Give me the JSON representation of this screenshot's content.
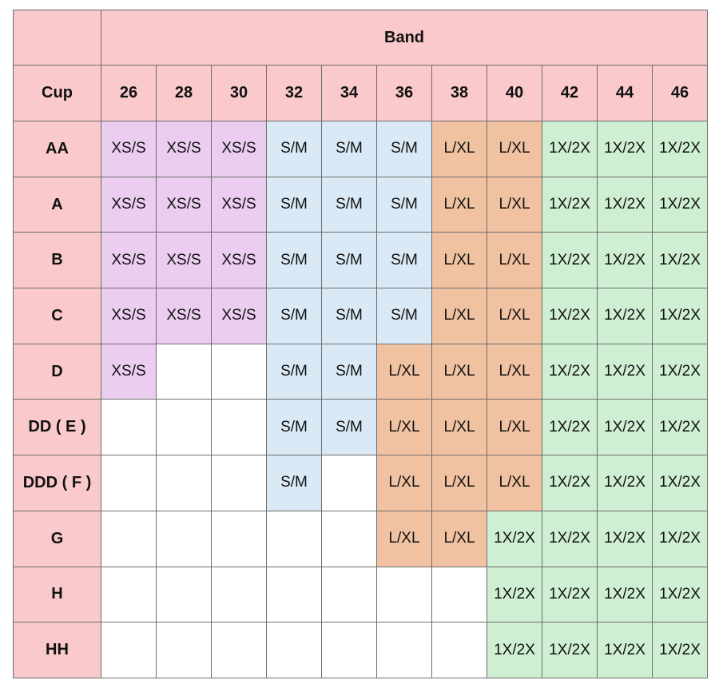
{
  "band_label": "Band",
  "cup_label": "Cup",
  "bands": [
    "26",
    "28",
    "30",
    "32",
    "34",
    "36",
    "38",
    "40",
    "42",
    "44",
    "46"
  ],
  "colors": {
    "header": "#f9c9cb",
    "XS/S": "#ebcdf0",
    "S/M": "#d9e9f5",
    "L/XL": "#f1c2a2",
    "1X/2X": "#cfefd2",
    "empty": "#ffffff"
  },
  "rows": [
    {
      "cup": "AA",
      "cells": [
        "XS/S",
        "XS/S",
        "XS/S",
        "S/M",
        "S/M",
        "S/M",
        "L/XL",
        "L/XL",
        "1X/2X",
        "1X/2X",
        "1X/2X"
      ]
    },
    {
      "cup": "A",
      "cells": [
        "XS/S",
        "XS/S",
        "XS/S",
        "S/M",
        "S/M",
        "S/M",
        "L/XL",
        "L/XL",
        "1X/2X",
        "1X/2X",
        "1X/2X"
      ]
    },
    {
      "cup": "B",
      "cells": [
        "XS/S",
        "XS/S",
        "XS/S",
        "S/M",
        "S/M",
        "S/M",
        "L/XL",
        "L/XL",
        "1X/2X",
        "1X/2X",
        "1X/2X"
      ]
    },
    {
      "cup": "C",
      "cells": [
        "XS/S",
        "XS/S",
        "XS/S",
        "S/M",
        "S/M",
        "S/M",
        "L/XL",
        "L/XL",
        "1X/2X",
        "1X/2X",
        "1X/2X"
      ]
    },
    {
      "cup": "D",
      "cells": [
        "XS/S",
        "",
        "",
        "S/M",
        "S/M",
        "L/XL",
        "L/XL",
        "L/XL",
        "1X/2X",
        "1X/2X",
        "1X/2X"
      ]
    },
    {
      "cup": "DD ( E )",
      "cells": [
        "",
        "",
        "",
        "S/M",
        "S/M",
        "L/XL",
        "L/XL",
        "L/XL",
        "1X/2X",
        "1X/2X",
        "1X/2X"
      ]
    },
    {
      "cup": "DDD ( F )",
      "cells": [
        "",
        "",
        "",
        "S/M",
        "",
        "L/XL",
        "L/XL",
        "L/XL",
        "1X/2X",
        "1X/2X",
        "1X/2X"
      ]
    },
    {
      "cup": "G",
      "cells": [
        "",
        "",
        "",
        "",
        "",
        "L/XL",
        "L/XL",
        "1X/2X",
        "1X/2X",
        "1X/2X",
        "1X/2X"
      ]
    },
    {
      "cup": "H",
      "cells": [
        "",
        "",
        "",
        "",
        "",
        "",
        "",
        "1X/2X",
        "1X/2X",
        "1X/2X",
        "1X/2X"
      ]
    },
    {
      "cup": "HH",
      "cells": [
        "",
        "",
        "",
        "",
        "",
        "",
        "",
        "1X/2X",
        "1X/2X",
        "1X/2X",
        "1X/2X"
      ]
    }
  ]
}
